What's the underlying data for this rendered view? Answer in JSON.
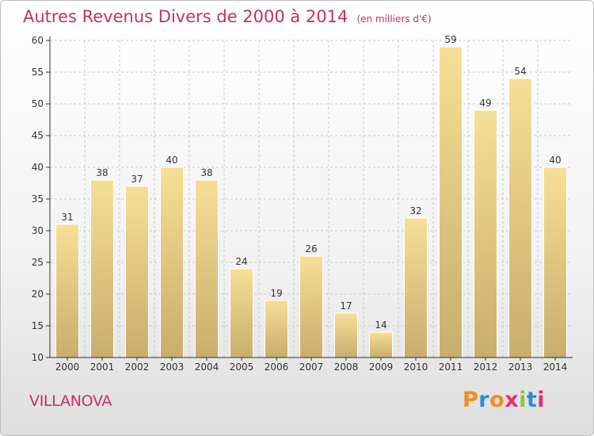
{
  "chart_data": {
    "type": "bar",
    "title": "Autres Revenus Divers de 2000 à 2014",
    "unit_note": "(en milliers d'€)",
    "categories": [
      "2000",
      "2001",
      "2002",
      "2003",
      "2004",
      "2005",
      "2006",
      "2007",
      "2008",
      "2009",
      "2010",
      "2011",
      "2012",
      "2013",
      "2014"
    ],
    "values": [
      31,
      38,
      37,
      40,
      38,
      24,
      19,
      26,
      17,
      14,
      32,
      59,
      49,
      54,
      40
    ],
    "ylim": [
      10,
      60
    ],
    "yticks": [
      10,
      15,
      20,
      25,
      30,
      35,
      40,
      45,
      50,
      55,
      60
    ],
    "grid": true,
    "bar_color_light": "#f6df96",
    "bar_color_dark": "#c7ae6c"
  },
  "place": "VILLANOVA",
  "logo": {
    "text": "Proxiti",
    "colors": [
      "#f28c1c",
      "#2a8fd6",
      "#f28c1c",
      "#e0307b",
      "#8cc63f",
      "#2a8fd6",
      "#e0307b"
    ]
  },
  "colors": {
    "accent": "#c0306b",
    "axis": "#333333",
    "grid": "#c8c8c8",
    "text": "#333333"
  }
}
